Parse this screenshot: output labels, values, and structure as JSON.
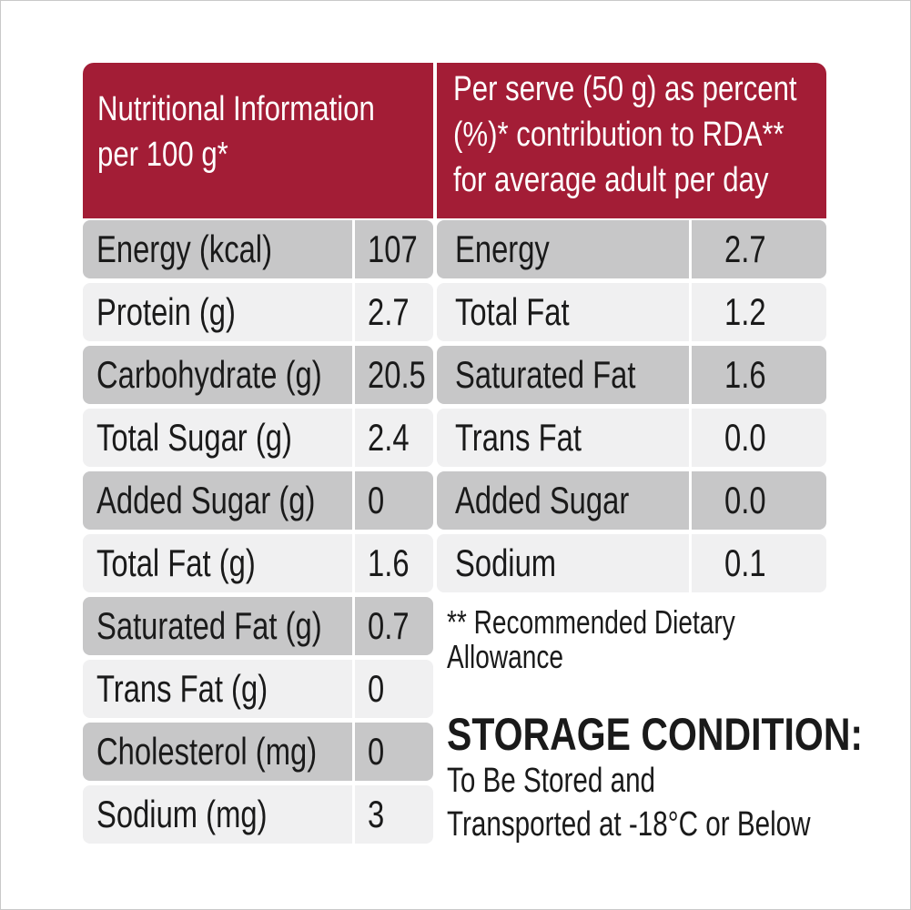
{
  "header": {
    "left": "Nutritional Information\nper 100 g*",
    "right": "Per serve (50 g) as percent\n(%)* contribution to RDA**\nfor average adult per day"
  },
  "left_table": [
    {
      "label": "Energy (kcal)",
      "value": "107"
    },
    {
      "label": "Protein (g)",
      "value": "2.7"
    },
    {
      "label": "Carbohydrate (g)",
      "value": "20.5"
    },
    {
      "label": "Total Sugar (g)",
      "value": "2.4"
    },
    {
      "label": "Added Sugar (g)",
      "value": "0"
    },
    {
      "label": "Total Fat (g)",
      "value": "1.6"
    },
    {
      "label": "Saturated Fat (g)",
      "value": "0.7"
    },
    {
      "label": "Trans Fat (g)",
      "value": "0"
    },
    {
      "label": "Cholesterol (mg)",
      "value": "0"
    },
    {
      "label": "Sodium (mg)",
      "value": "3"
    }
  ],
  "right_table": [
    {
      "label": "Energy",
      "value": "2.7"
    },
    {
      "label": "Total Fat",
      "value": "1.2"
    },
    {
      "label": "Saturated Fat",
      "value": "1.6"
    },
    {
      "label": "Trans Fat",
      "value": "0.0"
    },
    {
      "label": "Added Sugar",
      "value": "0.0"
    },
    {
      "label": "Sodium",
      "value": "0.1"
    }
  ],
  "footnote": "** Recommended Dietary\nAllowance",
  "storage": {
    "title": "STORAGE CONDITION:",
    "text": "To Be Stored and\nTransported at -18°C or Below"
  },
  "colors": {
    "header_bg": "#a31d36",
    "row_dark": "#c7c7c8",
    "row_light": "#f0f0f1"
  }
}
